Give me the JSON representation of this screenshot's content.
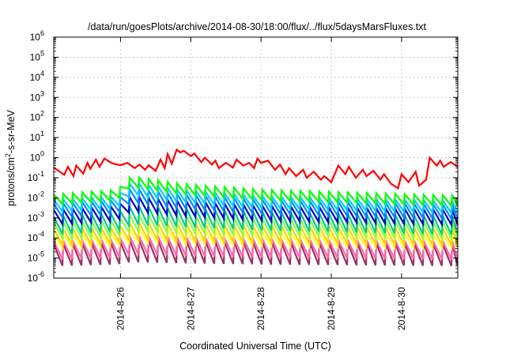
{
  "chart_data": {
    "type": "line",
    "title": "/data/run/goesPlots/archive/2014-08-30/18:00/flux/../flux/5daysMarsFluxes.txt",
    "xlabel": "Coordinated Universal Time (UTC)",
    "ylabel": "protons/cm²-s-sr-MeV",
    "ylabel_parts": {
      "before": "protons/cm",
      "sup": "2",
      "after": "-s-sr-MeV"
    },
    "yscale": "log",
    "ylim_exp": [
      -6,
      6
    ],
    "ytick_exponents": [
      -6,
      -5,
      -4,
      -3,
      -2,
      -1,
      0,
      1,
      2,
      3,
      4,
      5,
      6
    ],
    "ytick_base": "10",
    "xlim_days": [
      0,
      5.75
    ],
    "xtick_labels": [
      "2014-8-26",
      "2014-8-27",
      "2014-8-28",
      "2014-8-29",
      "2014-8-30"
    ],
    "xtick_days": [
      0.95,
      1.95,
      2.95,
      3.95,
      4.95
    ],
    "grid": true,
    "series": [
      {
        "color": "#ff0000",
        "x": [
          0,
          0.15,
          0.2,
          0.28,
          0.32,
          0.42,
          0.48,
          0.52,
          0.6,
          0.65,
          0.72,
          0.8,
          0.85,
          0.95,
          1.05,
          1.15,
          1.22,
          1.3,
          1.35,
          1.45,
          1.52,
          1.58,
          1.62,
          1.68,
          1.75,
          1.8,
          1.85,
          1.95,
          2.0,
          2.1,
          2.15,
          2.25,
          2.3,
          2.35,
          2.45,
          2.55,
          2.6,
          2.7,
          2.78,
          2.85,
          2.9,
          2.95,
          3.05,
          3.15,
          3.22,
          3.3,
          3.35,
          3.45,
          3.55,
          3.6,
          3.7,
          3.8,
          3.85,
          3.95,
          4.05,
          4.15,
          4.2,
          4.3,
          4.4,
          4.45,
          4.55,
          4.65,
          4.7,
          4.8,
          4.9,
          4.95,
          5.05,
          5.15,
          5.2,
          5.3,
          5.35,
          5.45,
          5.5,
          5.55,
          5.65,
          5.75
        ],
        "y": [
          0.32,
          0.14,
          0.35,
          0.12,
          0.4,
          0.16,
          0.55,
          0.28,
          0.8,
          0.35,
          0.9,
          0.6,
          0.5,
          0.42,
          0.55,
          0.3,
          0.45,
          0.25,
          0.42,
          0.22,
          0.8,
          0.3,
          1.5,
          0.5,
          2.5,
          1.8,
          2.2,
          1.2,
          1.6,
          0.6,
          1.0,
          0.45,
          0.7,
          0.3,
          0.55,
          0.32,
          0.8,
          0.4,
          0.55,
          0.3,
          0.9,
          0.55,
          0.7,
          0.25,
          0.45,
          0.15,
          0.3,
          0.12,
          0.25,
          0.1,
          0.2,
          0.08,
          0.12,
          0.06,
          0.4,
          0.15,
          0.35,
          0.1,
          0.25,
          0.12,
          0.22,
          0.08,
          0.15,
          0.05,
          0.03,
          0.15,
          0.06,
          0.2,
          0.04,
          0.08,
          1.0,
          0.4,
          0.7,
          0.35,
          0.6,
          0.35
        ]
      },
      {
        "color": "#00ff00",
        "period": 0.135,
        "top": [
          0.015,
          0.025,
          0.12,
          0.05,
          0.025,
          0.013
        ],
        "ratio": 0.3,
        "top_days": [
          0,
          0.9,
          1.1,
          1.8,
          3.0,
          5.75
        ]
      },
      {
        "color": "#00ccff",
        "period": 0.135,
        "top": [
          0.008,
          0.012,
          0.06,
          0.025,
          0.012,
          0.007
        ],
        "ratio": 0.25,
        "top_days": [
          0,
          0.9,
          1.1,
          1.8,
          3.0,
          5.75
        ]
      },
      {
        "color": "#0088ff",
        "period": 0.135,
        "top": [
          0.005,
          0.008,
          0.03,
          0.015,
          0.008,
          0.0045
        ],
        "ratio": 0.2,
        "top_days": [
          0,
          0.9,
          1.1,
          1.8,
          3.0,
          5.75
        ]
      },
      {
        "color": "#0000cc",
        "period": 0.135,
        "top": [
          0.0025,
          0.004,
          0.012,
          0.007,
          0.004,
          0.0025
        ],
        "ratio": 0.18,
        "top_days": [
          0,
          0.9,
          1.1,
          1.8,
          3.0,
          5.75
        ]
      },
      {
        "color": "#00cc88",
        "period": 0.135,
        "top": [
          0.0012,
          0.0018,
          0.004,
          0.003,
          0.002,
          0.0012
        ],
        "ratio": 0.12,
        "top_days": [
          0,
          0.9,
          1.1,
          1.8,
          3.0,
          5.75
        ]
      },
      {
        "color": "#88ff44",
        "period": 0.135,
        "top": [
          0.0006,
          0.0008,
          0.0015,
          0.0012,
          0.0009,
          0.0006
        ],
        "ratio": 0.15,
        "top_days": [
          0,
          0.9,
          1.1,
          1.8,
          3.0,
          5.75
        ]
      },
      {
        "color": "#ffd000",
        "period": 0.135,
        "top": [
          0.00028,
          0.00035,
          0.0006,
          0.0005,
          0.0004,
          0.0003
        ],
        "ratio": 0.15,
        "top_days": [
          0,
          0.9,
          1.1,
          1.8,
          3.0,
          5.75
        ]
      },
      {
        "color": "#ffff33",
        "period": 0.135,
        "top": [
          0.00015,
          0.0002,
          0.0003,
          0.00025,
          0.0002,
          0.00015
        ],
        "ratio": 0.2,
        "top_days": [
          0,
          0.9,
          1.1,
          1.8,
          3.0,
          5.75
        ]
      },
      {
        "color": "#ff66aa",
        "period": 0.135,
        "top": [
          7e-05,
          9e-05,
          0.00013,
          0.00011,
          9e-05,
          7e-05
        ],
        "ratio": 0.12,
        "top_days": [
          0,
          0.9,
          1.1,
          1.8,
          3.0,
          5.75
        ]
      },
      {
        "color": "#993366",
        "period": 0.135,
        "top": [
          5e-05,
          6e-05,
          8e-05,
          7e-05,
          6e-05,
          5e-05
        ],
        "ratio": 0.08,
        "top_days": [
          0,
          0.9,
          1.1,
          1.8,
          3.0,
          5.75
        ]
      }
    ]
  }
}
